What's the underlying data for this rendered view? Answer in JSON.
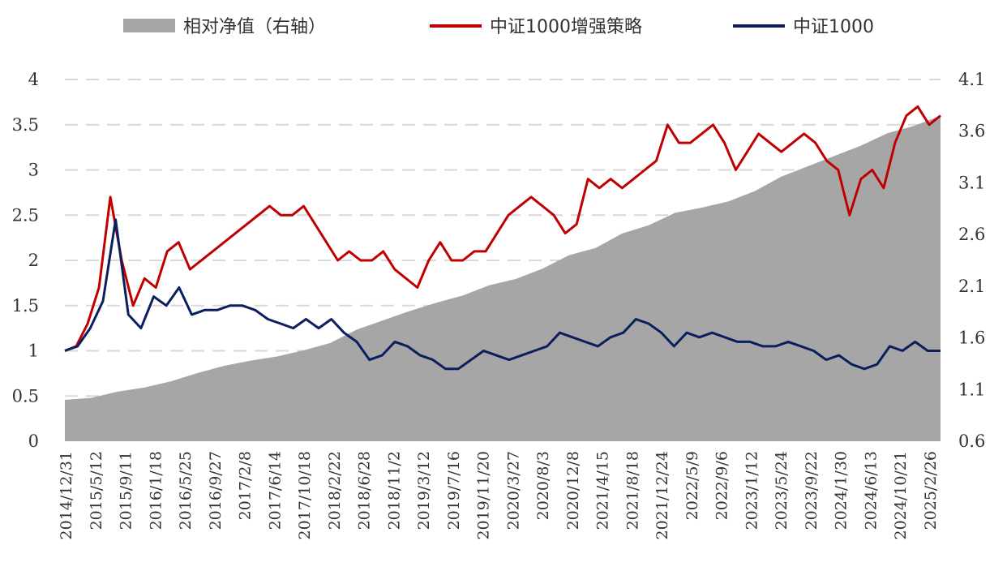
{
  "chart_data": {
    "type": "line",
    "title": "",
    "legend": {
      "position": "top",
      "entries": [
        "相对净值（右轴）",
        "中证1000增强策略",
        "中证1000"
      ]
    },
    "grid": true,
    "y_left": {
      "lim": [
        0,
        4
      ],
      "ticks": [
        "0",
        "0.5",
        "1",
        "1.5",
        "2",
        "2.5",
        "3",
        "3.5",
        "4"
      ]
    },
    "y_right": {
      "lim": [
        0.6,
        4.1
      ],
      "ticks": [
        "0.6",
        "1.1",
        "1.6",
        "2.1",
        "2.6",
        "3.1",
        "3.6",
        "4.1"
      ]
    },
    "x_labels": [
      "2014/12/31",
      "2015/5/12",
      "2015/9/11",
      "2016/1/18",
      "2016/5/25",
      "2016/9/27",
      "2017/2/8",
      "2017/6/14",
      "2017/10/18",
      "2018/2/22",
      "2018/6/28",
      "2018/11/2",
      "2019/3/12",
      "2019/7/16",
      "2019/11/20",
      "2020/3/27",
      "2020/8/3",
      "2020/12/8",
      "2021/4/15",
      "2021/8/18",
      "2021/12/24",
      "2022/5/9",
      "2022/9/6",
      "2023/1/12",
      "2023/5/24",
      "2023/9/22",
      "2024/1/30",
      "2024/6/13",
      "2024/10/21",
      "2025/2/26"
    ],
    "series": [
      {
        "name": "相对净值（右轴）",
        "type": "area",
        "axis": "right",
        "color": "#a6a6a6",
        "values": [
          1.0,
          1.02,
          1.08,
          1.12,
          1.18,
          1.26,
          1.33,
          1.38,
          1.42,
          1.48,
          1.55,
          1.68,
          1.77,
          1.86,
          1.94,
          2.01,
          2.11,
          2.17,
          2.27,
          2.4,
          2.47,
          2.61,
          2.69,
          2.81,
          2.86,
          2.92,
          3.02,
          3.16,
          3.26,
          3.36,
          3.46,
          3.58,
          3.65,
          3.75
        ]
      },
      {
        "name": "中证1000增强策略",
        "type": "line",
        "axis": "left",
        "color": "#c00000",
        "values": [
          1.0,
          1.05,
          1.3,
          1.7,
          2.7,
          2.0,
          1.5,
          1.8,
          1.7,
          2.1,
          2.2,
          1.9,
          2.0,
          2.1,
          2.2,
          2.3,
          2.4,
          2.5,
          2.6,
          2.5,
          2.5,
          2.6,
          2.4,
          2.2,
          2.0,
          2.1,
          2.0,
          2.0,
          2.1,
          1.9,
          1.8,
          1.7,
          2.0,
          2.2,
          2.0,
          2.0,
          2.1,
          2.1,
          2.3,
          2.5,
          2.6,
          2.7,
          2.6,
          2.5,
          2.3,
          2.4,
          2.9,
          2.8,
          2.9,
          2.8,
          2.9,
          3.0,
          3.1,
          3.5,
          3.3,
          3.3,
          3.4,
          3.5,
          3.3,
          3.0,
          3.2,
          3.4,
          3.3,
          3.2,
          3.3,
          3.4,
          3.3,
          3.1,
          3.0,
          2.5,
          2.9,
          3.0,
          2.8,
          3.3,
          3.6,
          3.7,
          3.5,
          3.6
        ],
        "x_index_span": 29
      },
      {
        "name": "中证1000",
        "type": "line",
        "axis": "left",
        "color": "#0b1f5e",
        "values": [
          1.0,
          1.05,
          1.25,
          1.55,
          2.45,
          1.4,
          1.25,
          1.6,
          1.5,
          1.7,
          1.4,
          1.45,
          1.45,
          1.5,
          1.5,
          1.45,
          1.35,
          1.3,
          1.25,
          1.35,
          1.25,
          1.35,
          1.2,
          1.1,
          0.9,
          0.95,
          1.1,
          1.05,
          0.95,
          0.9,
          0.8,
          0.8,
          0.9,
          1.0,
          0.95,
          0.9,
          0.95,
          1.0,
          1.05,
          1.2,
          1.15,
          1.1,
          1.05,
          1.15,
          1.2,
          1.35,
          1.3,
          1.2,
          1.05,
          1.2,
          1.15,
          1.2,
          1.15,
          1.1,
          1.1,
          1.05,
          1.05,
          1.1,
          1.05,
          1.0,
          0.9,
          0.95,
          0.85,
          0.8,
          0.85,
          1.05,
          1.0,
          1.1,
          1.0,
          1.0
        ],
        "x_index_span": 29
      }
    ]
  }
}
